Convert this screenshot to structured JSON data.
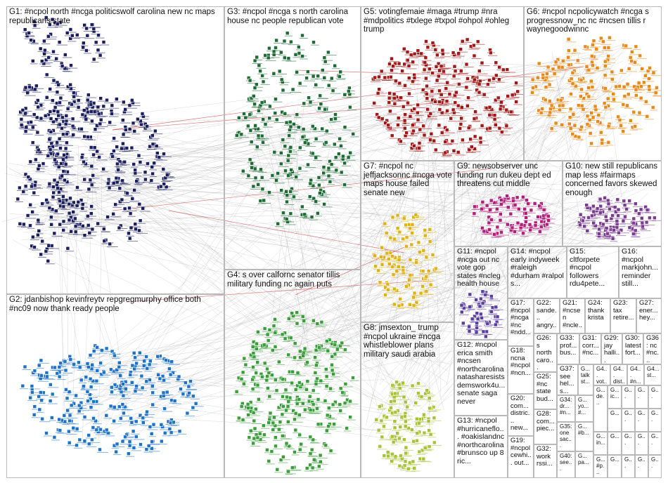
{
  "groups": [
    {
      "id": "G1",
      "label": "G1: #ncpol north #ncga politicswolf carolina new nc maps republicans state",
      "color": "#1c1f5e"
    },
    {
      "id": "G2",
      "label": "G2: jdanbishop kevinfreytv repgregmurphy office both #nc09 now thank ready people",
      "color": "#1e73c9"
    },
    {
      "id": "G3",
      "label": "G3: #ncpol #ncga s north carolina house nc people republican vote",
      "color": "#1f6b35"
    },
    {
      "id": "G4",
      "label": "G4: s over calfornc senator tillis military funding nc again puts",
      "color": "#3a9e3a"
    },
    {
      "id": "G5",
      "label": "G5: votingfemaie #maga #trump #nra #mdpolitics #txlege #txpol #ohpol #ohleg trump",
      "color": "#a01818"
    },
    {
      "id": "G6",
      "label": "G6: #ncpol ncpolicywatch #ncga s progressnow_nc nc #ncsen tillis r waynegoodwinnc",
      "color": "#e8891c"
    },
    {
      "id": "G7",
      "label": "G7: #ncpol nc jeffjacksonnc #ncga vote maps house failed senate new",
      "color": "#e0b21a"
    },
    {
      "id": "G8",
      "label": "G8: jmsexton_ trump #ncpol ukraine #ncga whistleblower plans military saudi arabia",
      "color": "#a8c23a"
    },
    {
      "id": "G9",
      "label": "G9: newsobserver unc funding run dukeu dept ed threatens cut middle",
      "color": "#b0207a"
    },
    {
      "id": "G10",
      "label": "G10: new still republicans map less #fairmaps concerned favors skewed enough",
      "color": "#7a3c8e"
    },
    {
      "id": "G11",
      "label": "G11: #ncpol #ncga out nc vote gop states #ncleg health house",
      "color": "#5a3f9e"
    },
    {
      "id": "G12",
      "label": "G12: #ncpol erica smith #ncsen #northcarolina natasharesists demswork4u... senate saga never",
      "color": "#333333"
    },
    {
      "id": "G13",
      "label": "G13: #ncpol #hurricaneflo... #oakislandnc #northcarolina #brunsco up 8 ric...",
      "color": "#333333"
    },
    {
      "id": "G14",
      "label": "G14: #ncpol early indyweek #raleigh #durham #ralpol s...",
      "color": "#333333"
    },
    {
      "id": "G15",
      "label": "G15: cltforpete #ncpol followers rdu4pete...",
      "color": "#333333"
    },
    {
      "id": "G16",
      "label": "G16: #ncpol markjohn... reminder still...",
      "color": "#333333"
    },
    {
      "id": "G17",
      "label": "G17: #ncpol #ncga #nc #ndd...",
      "color": "#333333"
    },
    {
      "id": "G18",
      "label": "G18: ncna #ncpol #ncn...",
      "color": "#333333"
    },
    {
      "id": "G19",
      "label": "G19: #ncpol cewhi... out...",
      "color": "#333333"
    },
    {
      "id": "G20",
      "label": "G20: com... distric... new...",
      "color": "#333333"
    },
    {
      "id": "G21",
      "label": "G21: #ncsen #ncle...",
      "color": "#333333"
    },
    {
      "id": "G22",
      "label": "G22: sande... angry...",
      "color": "#333333"
    },
    {
      "id": "G23",
      "label": "G23: tax retire...",
      "color": "#333333"
    },
    {
      "id": "G24",
      "label": "G24: thank krista",
      "color": "#333333"
    },
    {
      "id": "G25",
      "label": "G25: #nc state bud...",
      "color": "#333333"
    },
    {
      "id": "G26",
      "label": "G26: s north caro...",
      "color": "#333333"
    },
    {
      "id": "G27",
      "label": "G27: ener... hey...",
      "color": "#333333"
    },
    {
      "id": "G28",
      "label": "G28: com... piec...",
      "color": "#333333"
    },
    {
      "id": "G29",
      "label": "G29: jay halli...",
      "color": "#333333"
    },
    {
      "id": "G30",
      "label": "G30: latest fort...",
      "color": "#333333"
    },
    {
      "id": "G31",
      "label": "G31: corr... #nc...",
      "color": "#333333"
    },
    {
      "id": "G32",
      "label": "G32: work rssi...",
      "color": "#333333"
    },
    {
      "id": "G33",
      "label": "G33: prof... bus...",
      "color": "#333333"
    },
    {
      "id": "G34",
      "label": "G34: dr... #n...",
      "color": "#333333"
    },
    {
      "id": "G35",
      "label": "G35: one sac...",
      "color": "#333333"
    },
    {
      "id": "G36",
      "label": "G36: nc #nc...",
      "color": "#333333"
    },
    {
      "id": "G37",
      "label": "G37: see hel... s...",
      "color": "#333333"
    },
    {
      "id": "G38",
      "label": "G... talk st...",
      "color": "#333333"
    },
    {
      "id": "G39",
      "label": "G... yo... #...",
      "color": "#333333"
    },
    {
      "id": "G40",
      "label": "G40: see...",
      "color": "#333333"
    },
    {
      "id": "G41",
      "label": "G4... vot...",
      "color": "#333333"
    },
    {
      "id": "G42",
      "label": "G4... dist...",
      "color": "#333333"
    },
    {
      "id": "G43",
      "label": "G4... #n...",
      "color": "#333333"
    },
    {
      "id": "G44",
      "label": "G4... st...",
      "color": "#333333"
    },
    {
      "id": "G45",
      "label": "G... #b...",
      "color": "#333333"
    },
    {
      "id": "G46",
      "label": "G... de...",
      "color": "#333333"
    },
    {
      "id": "G47",
      "label": "G... ic...",
      "color": "#333333"
    },
    {
      "id": "G48",
      "label": "G...",
      "color": "#333333"
    },
    {
      "id": "G49",
      "label": "G... in...",
      "color": "#333333"
    },
    {
      "id": "G50",
      "label": "G... #p...",
      "color": "#333333"
    },
    {
      "id": "G51",
      "label": "G... pa...",
      "color": "#333333"
    },
    {
      "id": "G52",
      "label": "G...",
      "color": "#333333"
    },
    {
      "id": "G53",
      "label": "G...",
      "color": "#333333"
    },
    {
      "id": "G54",
      "label": "G...",
      "color": "#333333"
    },
    {
      "id": "G55",
      "label": "G...",
      "color": "#333333"
    },
    {
      "id": "G56",
      "label": "G...",
      "color": "#333333"
    },
    {
      "id": "G57",
      "label": "G...",
      "color": "#333333"
    },
    {
      "id": "G58",
      "label": "G...",
      "color": "#333333"
    },
    {
      "id": "G59",
      "label": "G...",
      "color": "#333333"
    },
    {
      "id": "G60",
      "label": "G...",
      "color": "#333333"
    },
    {
      "id": "G61",
      "label": "G...",
      "color": "#333333"
    },
    {
      "id": "G62",
      "label": "G...",
      "color": "#333333"
    },
    {
      "id": "G63",
      "label": "G...",
      "color": "#333333"
    },
    {
      "id": "G64",
      "label": "G...",
      "color": "#333333"
    },
    {
      "id": "G65",
      "label": "G...",
      "color": "#333333"
    },
    {
      "id": "G66",
      "label": "G...",
      "color": "#333333"
    }
  ],
  "edge_colors": {
    "gray": "#9a9a9a",
    "red": "#c42020"
  }
}
